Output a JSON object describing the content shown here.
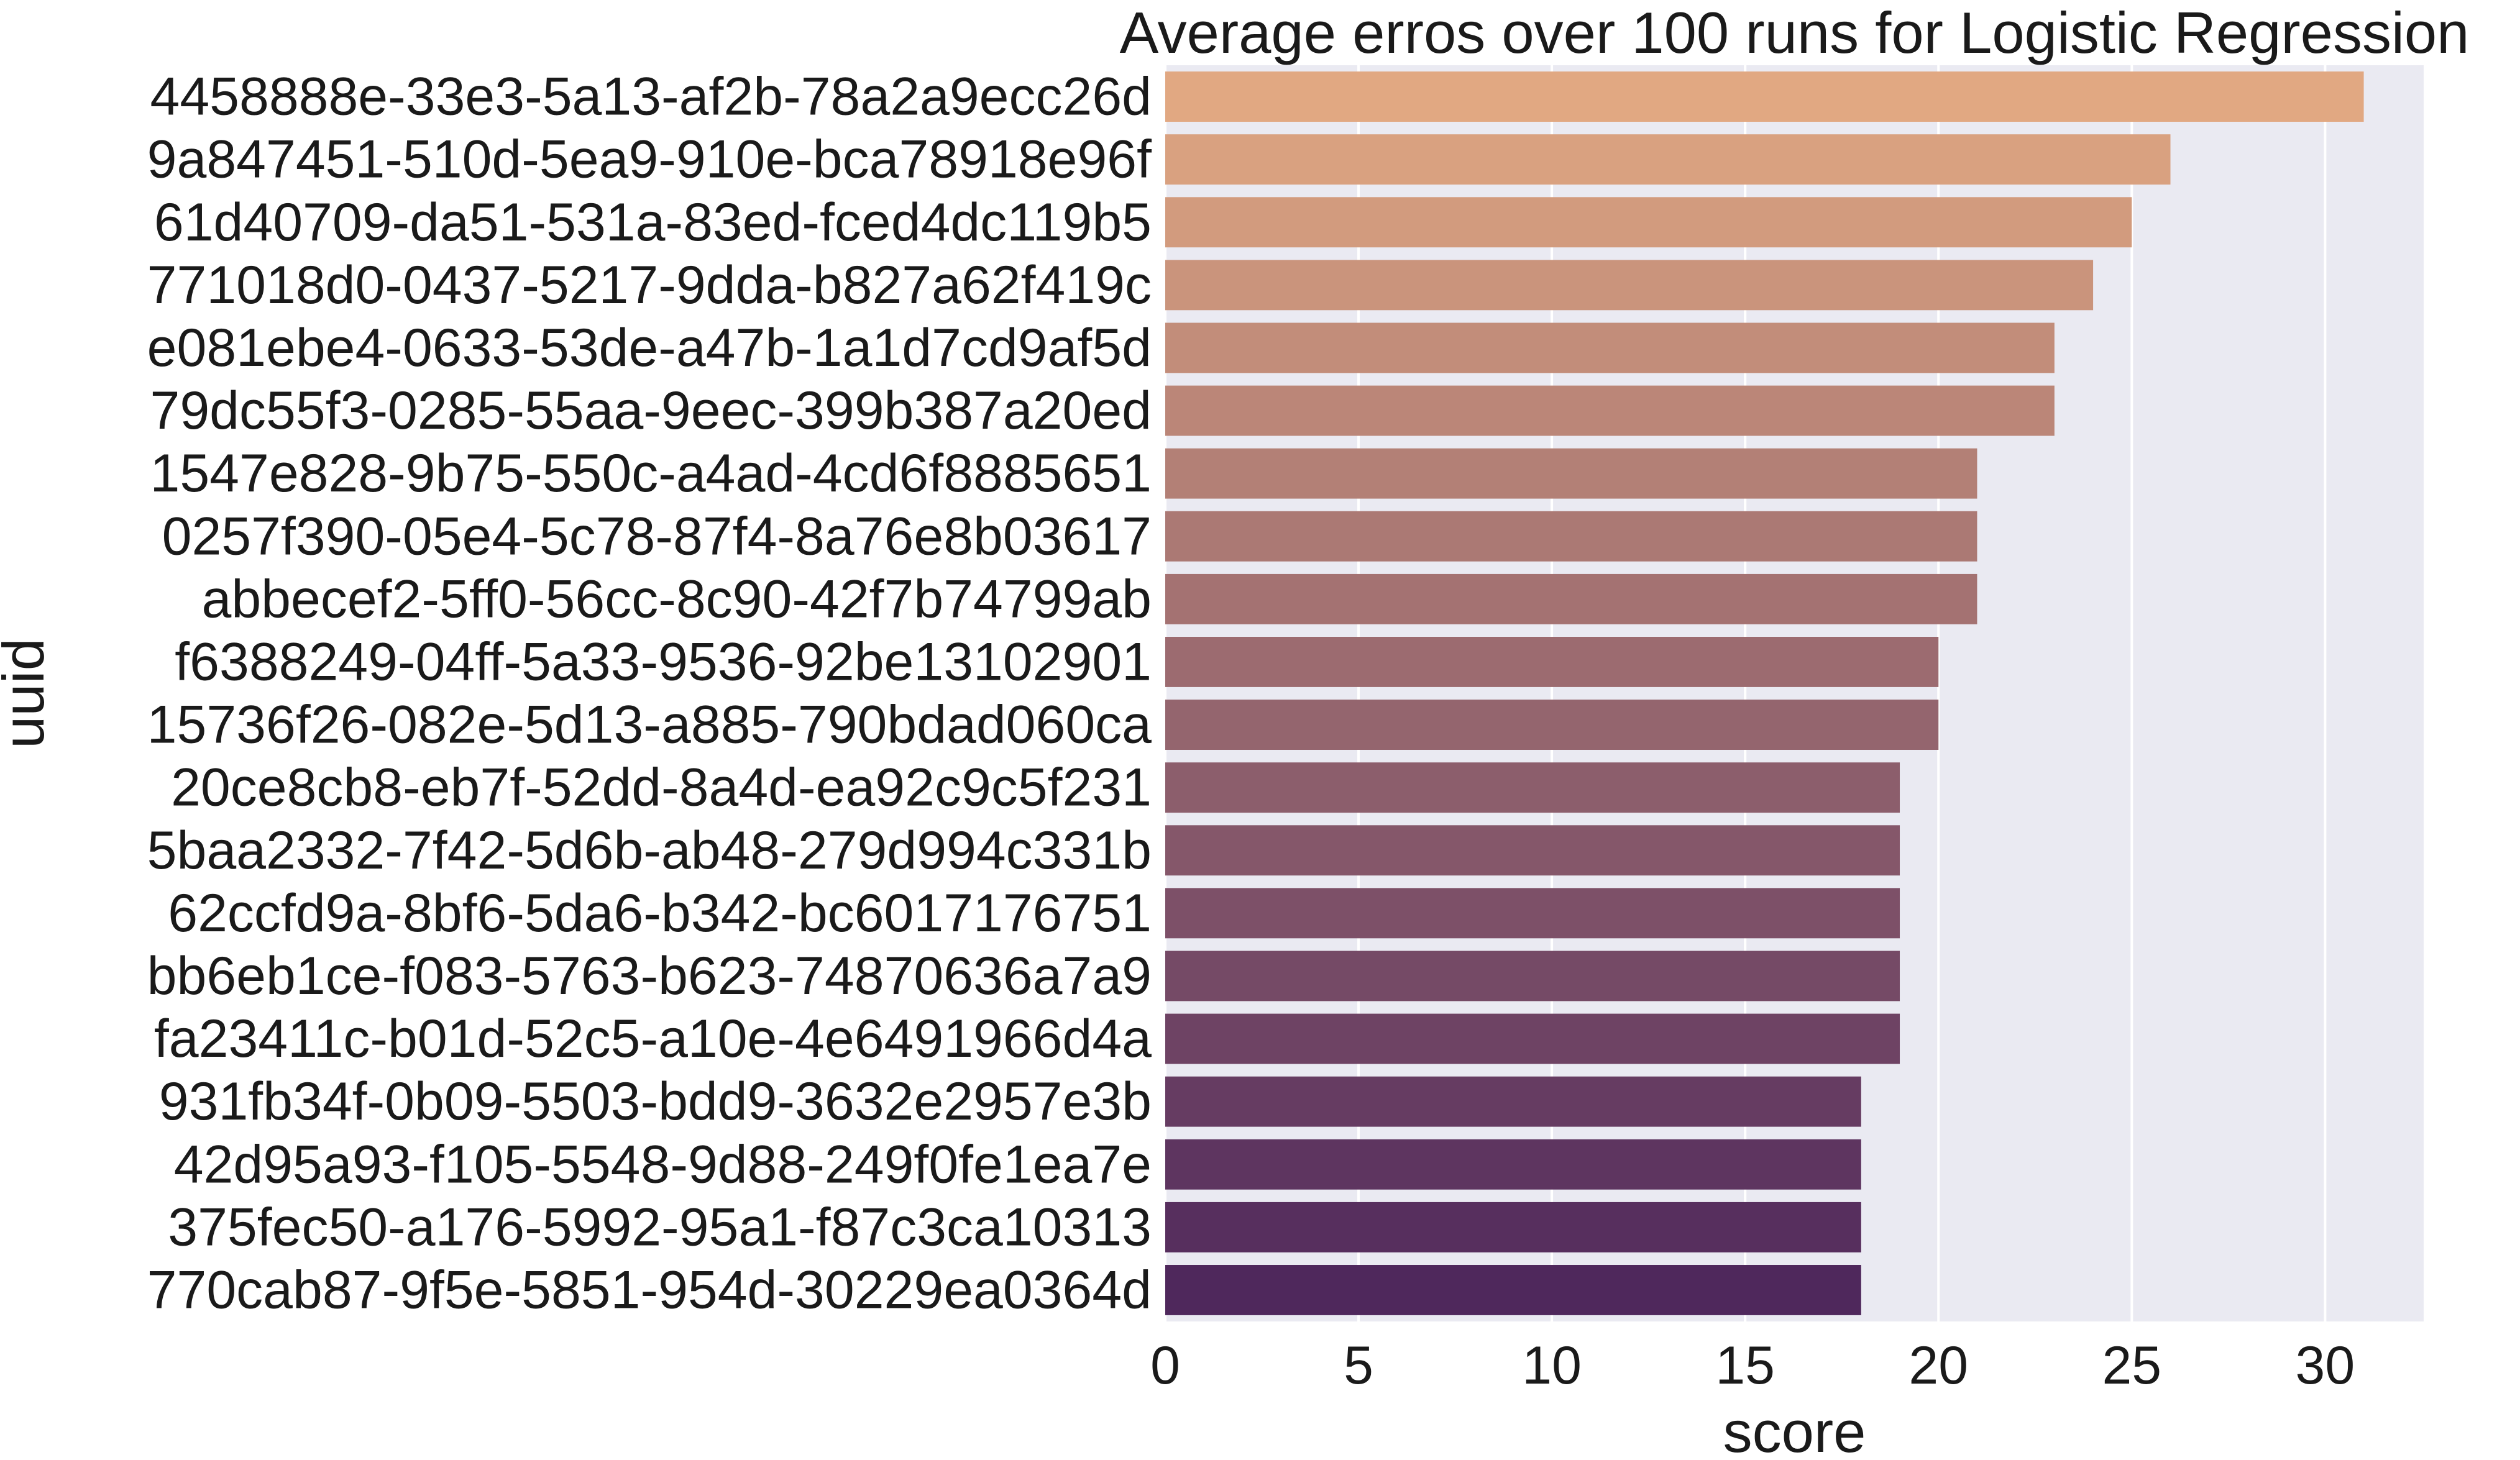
{
  "chart_data": {
    "type": "bar",
    "orientation": "horizontal",
    "title": "Average erros over 100 runs for Logistic Regression",
    "xlabel": "score",
    "ylabel": "uuid",
    "xlim": [
      0,
      32.55
    ],
    "xticks": [
      0,
      5,
      10,
      15,
      20,
      25,
      30
    ],
    "grid": true,
    "legend": "none",
    "background_color": "#eaeaf2",
    "palette_start": "#e1a882",
    "palette_end": "#4f285c",
    "categories": [
      "4458888e-33e3-5a13-af2b-78a2a9ecc26d",
      "9a847451-510d-5ea9-910e-bca78918e96f",
      "61d40709-da51-531a-83ed-fced4dc119b5",
      "771018d0-0437-5217-9dda-b827a62f419c",
      "e081ebe4-0633-53de-a47b-1a1d7cd9af5d",
      "79dc55f3-0285-55aa-9eec-399b387a20ed",
      "1547e828-9b75-550c-a4ad-4cd6f8885651",
      "0257f390-05e4-5c78-87f4-8a76e8b03617",
      "abbecef2-5ff0-56cc-8c90-42f7b74799ab",
      "f6388249-04ff-5a33-9536-92be13102901",
      "15736f26-082e-5d13-a885-790bdad060ca",
      "20ce8cb8-eb7f-52dd-8a4d-ea92c9c5f231",
      "5baa2332-7f42-5d6b-ab48-279d994c331b",
      "62ccfd9a-8bf6-5da6-b342-bc6017176751",
      "bb6eb1ce-f083-5763-b623-74870636a7a9",
      "fa23411c-b01d-52c5-a10e-4e6491966d4a",
      "931fb34f-0b09-5503-bdd9-3632e2957e3b",
      "42d95a93-f105-5548-9d88-249f0fe1ea7e",
      "375fec50-a176-5992-95a1-f87c3ca10313",
      "770cab87-9f5e-5851-954d-30229ea0364d"
    ],
    "values": [
      31,
      26,
      25,
      24,
      23,
      23,
      21,
      21,
      21,
      20,
      20,
      19,
      19,
      19,
      19,
      19,
      18,
      18,
      18,
      18
    ]
  }
}
